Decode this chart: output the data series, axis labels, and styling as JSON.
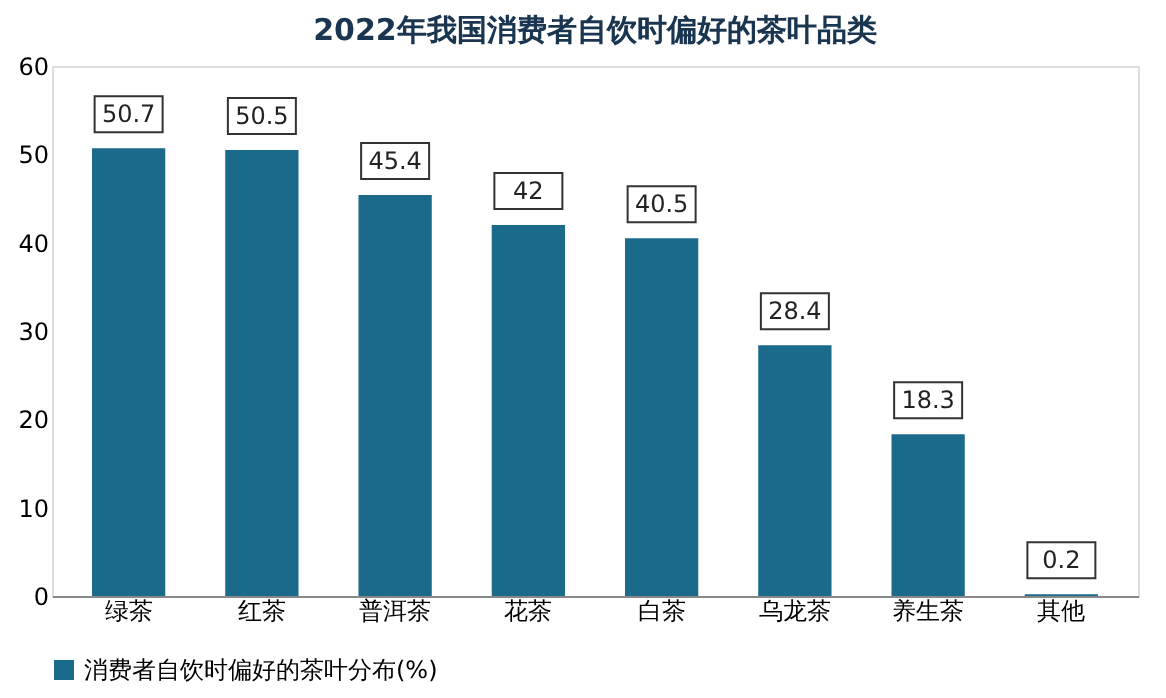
{
  "chart_data": {
    "type": "bar",
    "title": "2022年我国消费者自饮时偏好的茶叶品类",
    "categories": [
      "绿茶",
      "红茶",
      "普洱茶",
      "花茶",
      "白茶",
      "乌龙茶",
      "养生茶",
      "其他"
    ],
    "series": [
      {
        "name": "消费者自饮时偏好的茶叶分布(%)",
        "color": "#1b6a8c",
        "values": [
          50.7,
          50.5,
          45.4,
          42,
          40.5,
          28.4,
          18.3,
          0.2
        ]
      }
    ],
    "ylim": [
      0,
      60
    ],
    "yticks": [
      0,
      10,
      20,
      30,
      40,
      50,
      60
    ],
    "grid": false,
    "legend": "bottom",
    "data_labels": true
  }
}
